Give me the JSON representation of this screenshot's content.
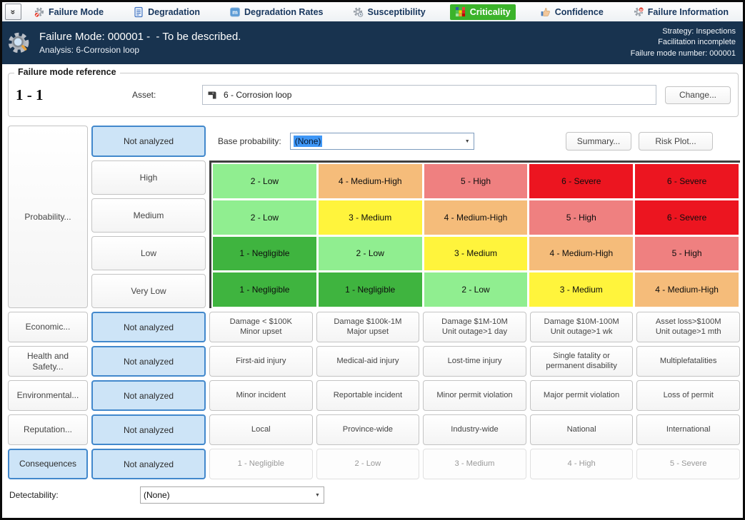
{
  "toolbar": {
    "tabs": [
      {
        "label": "Failure Mode",
        "icon": "failure-mode-gear-blocked",
        "active": false
      },
      {
        "label": "Degradation",
        "icon": "degradation-document",
        "active": false
      },
      {
        "label": "Degradation Rates",
        "icon": "degradation-rates-m-badge",
        "active": false
      },
      {
        "label": "Susceptibility",
        "icon": "susceptibility-gear",
        "active": false
      },
      {
        "label": "Criticality",
        "icon": "criticality-risk-matrix",
        "active": true
      },
      {
        "label": "Confidence",
        "icon": "confidence-thumb-up",
        "active": false
      },
      {
        "label": "Failure Information",
        "icon": "failure-information-gear-alert",
        "active": false
      }
    ],
    "active_tab_color": "#3bb32a"
  },
  "header": {
    "title": "Failure Mode: 000001 -  - To be described.",
    "subtitle": "Analysis: 6-Corrosion loop",
    "right_lines": [
      "Strategy: Inspections",
      "Facilitation incomplete",
      "Failure mode number: 000001"
    ],
    "background_color": "#18334f"
  },
  "reference": {
    "group_title": "Failure mode reference",
    "index": "1 - 1",
    "asset_label": "Asset:",
    "asset_value": "6 - Corrosion loop",
    "change_button": "Change..."
  },
  "probability": {
    "label_button": "Probability...",
    "status_button": "Not analyzed",
    "base_probability_label": "Base probability:",
    "base_probability_value": "(None)",
    "summary_button": "Summary...",
    "risk_plot_button": "Risk Plot...",
    "levels": [
      "High",
      "Medium",
      "Low",
      "Very Low"
    ]
  },
  "risk_matrix": {
    "colors": {
      "negligible": "#3fb43f",
      "low": "#90ee90",
      "medium": "#fff43c",
      "medium_high": "#f5bc7a",
      "high": "#ef8080",
      "severe": "#ec1520"
    },
    "rows": [
      [
        {
          "label": "2 - Low",
          "level": "low"
        },
        {
          "label": "4 - Medium-High",
          "level": "medium_high"
        },
        {
          "label": "5 - High",
          "level": "high"
        },
        {
          "label": "6 - Severe",
          "level": "severe"
        },
        {
          "label": "6 - Severe",
          "level": "severe"
        }
      ],
      [
        {
          "label": "2 - Low",
          "level": "low"
        },
        {
          "label": "3 - Medium",
          "level": "medium"
        },
        {
          "label": "4 - Medium-High",
          "level": "medium_high"
        },
        {
          "label": "5 - High",
          "level": "high"
        },
        {
          "label": "6 - Severe",
          "level": "severe"
        }
      ],
      [
        {
          "label": "1 - Negligible",
          "level": "negligible"
        },
        {
          "label": "2 - Low",
          "level": "low"
        },
        {
          "label": "3 - Medium",
          "level": "medium"
        },
        {
          "label": "4 - Medium-High",
          "level": "medium_high"
        },
        {
          "label": "5 - High",
          "level": "high"
        }
      ],
      [
        {
          "label": "1 - Negligible",
          "level": "negligible"
        },
        {
          "label": "1 - Negligible",
          "level": "negligible"
        },
        {
          "label": "2 - Low",
          "level": "low"
        },
        {
          "label": "3 - Medium",
          "level": "medium"
        },
        {
          "label": "4 - Medium-High",
          "level": "medium_high"
        }
      ]
    ]
  },
  "consequences": {
    "rows": [
      {
        "category": "Economic...",
        "category_selected": false,
        "status": "Not analyzed",
        "disabled": false,
        "cells": [
          "Damage < $100K\nMinor upset",
          "Damage $100k-1M\nMajor upset",
          "Damage $1M-10M\nUnit outage>1 day",
          "Damage $10M-100M\nUnit outage>1 wk",
          "Asset loss>$100M\nUnit outage>1 mth"
        ]
      },
      {
        "category": "Health and Safety...",
        "category_selected": false,
        "status": "Not analyzed",
        "disabled": false,
        "cells": [
          "First-aid injury",
          "Medical-aid injury",
          "Lost-time injury",
          "Single fatality or\npermanent disability",
          "Multiplefatalities"
        ]
      },
      {
        "category": "Environmental...",
        "category_selected": false,
        "status": "Not analyzed",
        "disabled": false,
        "cells": [
          "Minor incident",
          "Reportable incident",
          "Minor permit violation",
          "Major permit  violation",
          "Loss of permit"
        ]
      },
      {
        "category": "Reputation...",
        "category_selected": false,
        "status": "Not analyzed",
        "disabled": false,
        "cells": [
          "Local",
          "Province-wide",
          "Industry-wide",
          "National",
          "International"
        ]
      },
      {
        "category": "Consequences",
        "category_selected": true,
        "status": "Not analyzed",
        "disabled": true,
        "cells": [
          "1 - Negligible",
          "2 - Low",
          "3 - Medium",
          "4 - High",
          "5 - Severe"
        ]
      }
    ]
  },
  "detectability": {
    "label": "Detectability:",
    "value": "(None)"
  }
}
